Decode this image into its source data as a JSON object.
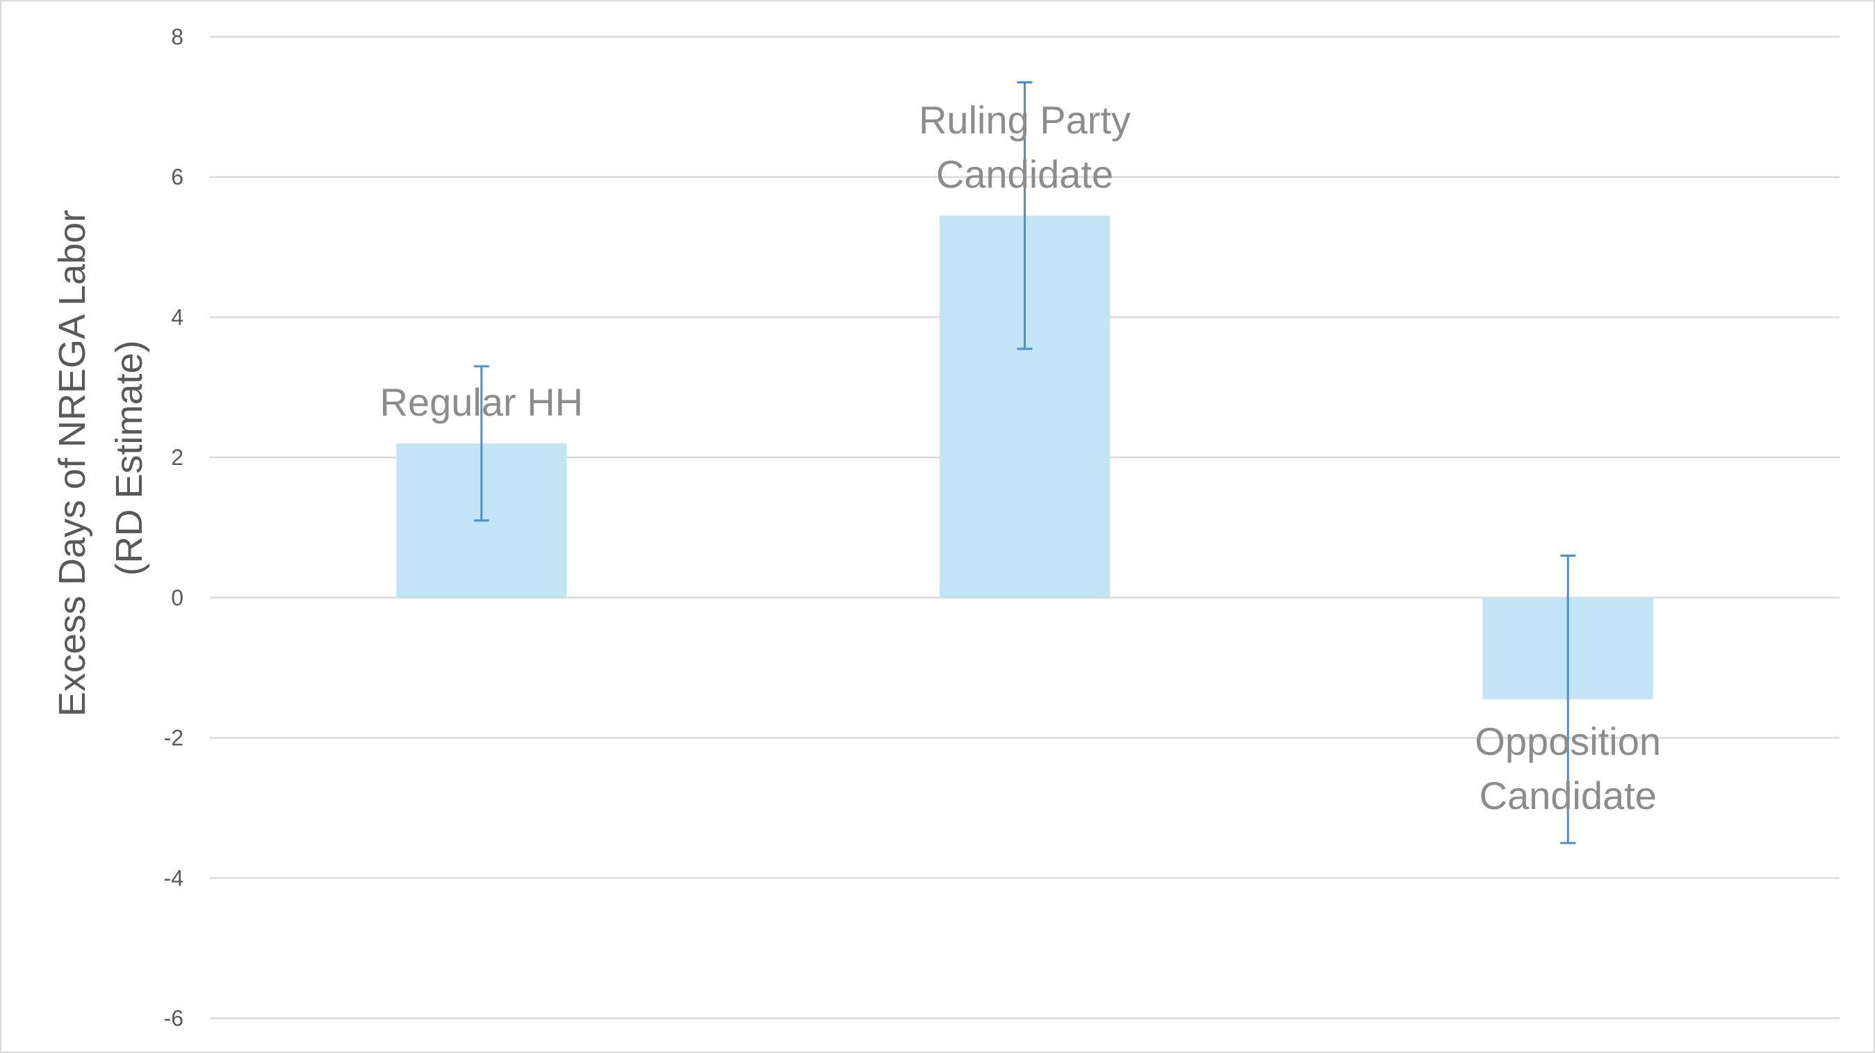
{
  "chart_data": {
    "type": "bar",
    "title": "",
    "xlabel": "",
    "ylabel_lines": [
      "Excess Days of NREGA Labor",
      "(RD Estimate)"
    ],
    "ylim": [
      -6,
      8
    ],
    "yticks": [
      -6,
      -4,
      -2,
      0,
      2,
      4,
      6,
      8
    ],
    "grid": true,
    "legend": "none",
    "bar_color": "#c3e4f5",
    "error_color": "#4a90d0",
    "categories": [
      {
        "label_lines": [
          "Regular HH"
        ],
        "label_position": "above"
      },
      {
        "label_lines": [
          "Ruling Party",
          "Candidate"
        ],
        "label_position": "above"
      },
      {
        "label_lines": [
          "Opposition",
          "Candidate"
        ],
        "label_position": "below"
      }
    ],
    "values": [
      2.2,
      5.45,
      -1.45
    ],
    "error_low": [
      1.1,
      3.55,
      -3.5
    ],
    "error_high": [
      3.3,
      7.35,
      0.6
    ]
  }
}
